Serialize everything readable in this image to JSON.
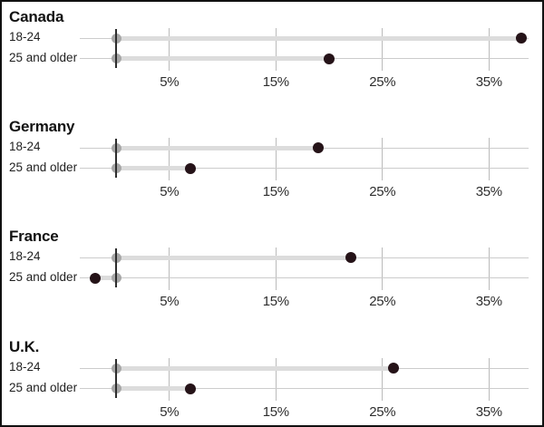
{
  "chart_data": {
    "type": "scatter",
    "subtype": "dumbbell-dot-plot",
    "unit": "percent",
    "categories": [
      "18-24",
      "25 and older"
    ],
    "x_ticks": [
      "5%",
      "15%",
      "25%",
      "35%"
    ],
    "x_tick_values": [
      5,
      15,
      25,
      35
    ],
    "xlim": [
      -3.4,
      38.7
    ],
    "baseline_value": 0,
    "grid": "vertical-only",
    "legend": "none",
    "panels": [
      {
        "title": "Canada",
        "values": [
          38,
          20
        ]
      },
      {
        "title": "Germany",
        "values": [
          19,
          7
        ]
      },
      {
        "title": "France",
        "values": [
          22,
          -2
        ]
      },
      {
        "title": "U.K.",
        "values": [
          26,
          7
        ]
      }
    ],
    "colors": {
      "value_dot": "#251318",
      "baseline_dot": "#a8a8a8",
      "band": "#dcdcdc",
      "row_line": "#cccccc",
      "gridline": "#bbbbbb",
      "zero_axis": "#2e2e2e",
      "title_text": "#121212",
      "label_text": "#1f1f1f",
      "tick_text": "#2e2e2e",
      "frame": "#111111"
    }
  }
}
